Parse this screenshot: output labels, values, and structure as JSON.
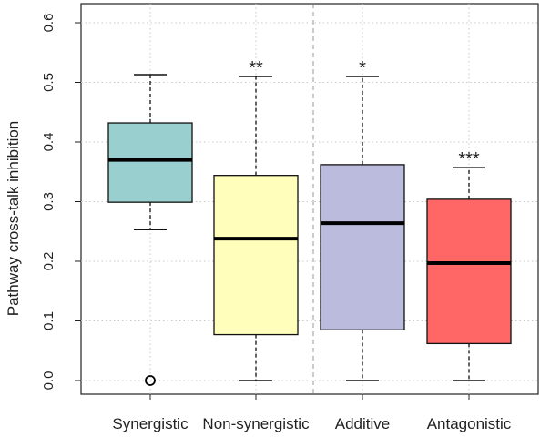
{
  "chart_data": {
    "type": "boxplot",
    "ylabel": "Pathway cross-talk inhibition",
    "xlabel": "",
    "ylim": [
      0,
      0.62
    ],
    "yticks": [
      0.0,
      0.1,
      0.2,
      0.3,
      0.4,
      0.5,
      0.6
    ],
    "ytick_labels": [
      "0.0",
      "0.1",
      "0.2",
      "0.3",
      "0.4",
      "0.5",
      "0.6"
    ],
    "grid": true,
    "reference_line": {
      "between": [
        "Non-synergistic",
        "Additive"
      ],
      "style": "dashed",
      "color": "#999999"
    },
    "categories": [
      "Synergistic",
      "Non-synergistic",
      "Additive",
      "Antagonistic"
    ],
    "boxes": [
      {
        "name": "Synergistic",
        "whisker_low": 0.253,
        "q1": 0.299,
        "median": 0.37,
        "q3": 0.432,
        "whisker_high": 0.513,
        "outliers": [
          0.0
        ],
        "color": "#9acfcf",
        "significance": ""
      },
      {
        "name": "Non-synergistic",
        "whisker_low": 0.0,
        "q1": 0.077,
        "median": 0.238,
        "q3": 0.344,
        "whisker_high": 0.51,
        "outliers": [],
        "color": "#ffffbb",
        "significance": "**"
      },
      {
        "name": "Additive",
        "whisker_low": 0.0,
        "q1": 0.085,
        "median": 0.264,
        "q3": 0.362,
        "whisker_high": 0.51,
        "outliers": [],
        "color": "#bbbbdd",
        "significance": "*"
      },
      {
        "name": "Antagonistic",
        "whisker_low": 0.0,
        "q1": 0.062,
        "median": 0.197,
        "q3": 0.304,
        "whisker_high": 0.357,
        "outliers": [],
        "color": "#ff6666",
        "significance": "***"
      }
    ]
  }
}
